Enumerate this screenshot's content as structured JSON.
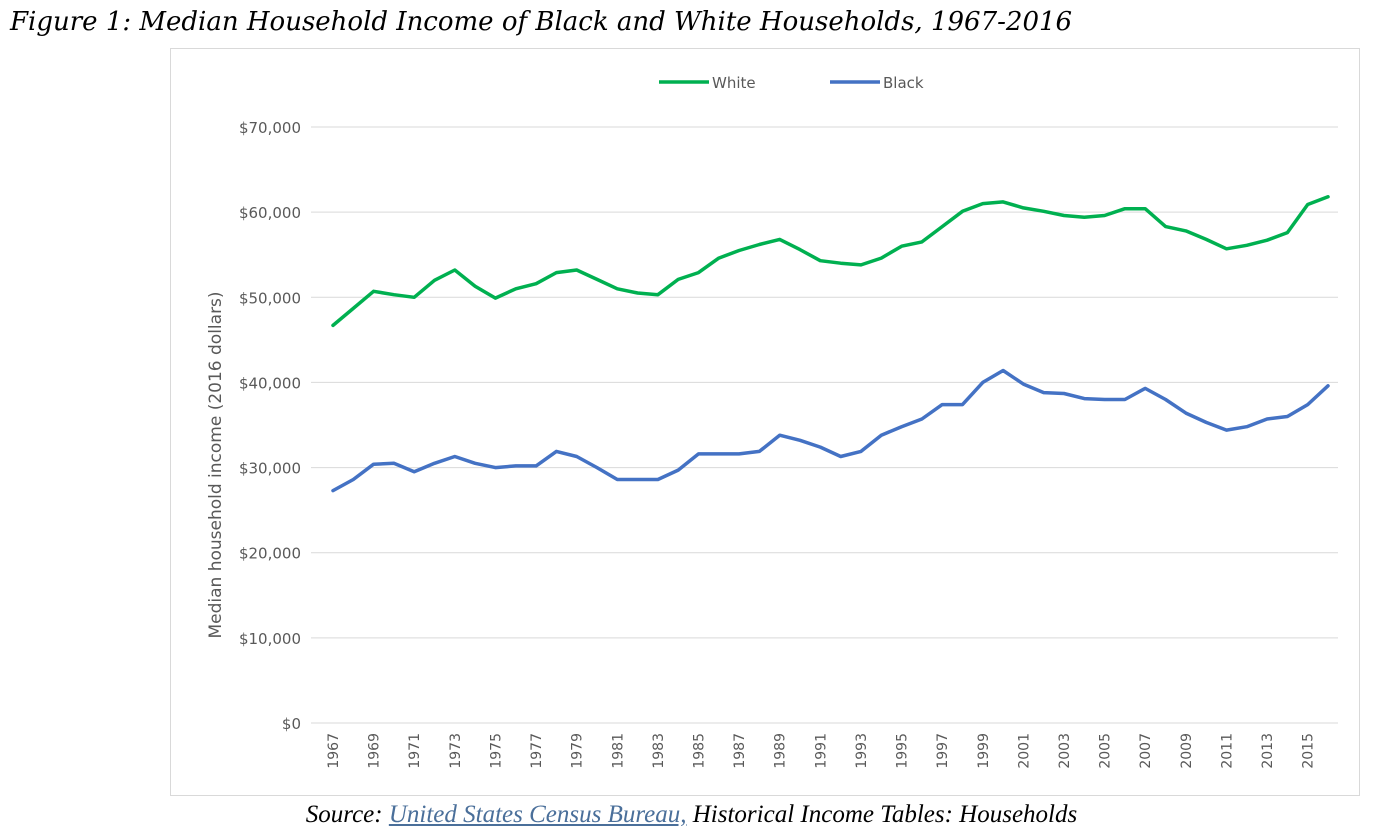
{
  "figure": {
    "title": "Figure 1: Median Household Income of Black and White Households, 1967-2016",
    "source_prefix": "Source: ",
    "source_link": "United States Census Bureau,",
    "source_suffix": " Historical Income Tables: Households"
  },
  "chart_data": {
    "type": "line",
    "title": "",
    "xlabel": "",
    "ylabel": "Median household income (2016 dollars)",
    "ylim": [
      0,
      70000
    ],
    "yticks": [
      0,
      10000,
      20000,
      30000,
      40000,
      50000,
      60000,
      70000
    ],
    "ytick_labels": [
      "$0",
      "$10,000",
      "$20,000",
      "$30,000",
      "$40,000",
      "$50,000",
      "$60,000",
      "$70,000"
    ],
    "x": [
      1967,
      1968,
      1969,
      1970,
      1971,
      1972,
      1973,
      1974,
      1975,
      1976,
      1977,
      1978,
      1979,
      1980,
      1981,
      1982,
      1983,
      1984,
      1985,
      1986,
      1987,
      1988,
      1989,
      1990,
      1991,
      1992,
      1993,
      1994,
      1995,
      1996,
      1997,
      1998,
      1999,
      2000,
      2001,
      2002,
      2003,
      2004,
      2005,
      2006,
      2007,
      2008,
      2009,
      2010,
      2011,
      2012,
      2013,
      2014,
      2015,
      2016
    ],
    "xtick_labels": [
      "1967",
      "1969",
      "1971",
      "1973",
      "1975",
      "1977",
      "1979",
      "1981",
      "1983",
      "1985",
      "1987",
      "1989",
      "1991",
      "1993",
      "1995",
      "1997",
      "1999",
      "2001",
      "2003",
      "2005",
      "2007",
      "2009",
      "2011",
      "2013",
      "2015"
    ],
    "grid": true,
    "legend": "top-center",
    "series": [
      {
        "name": "White",
        "color": "#00b050",
        "values": [
          46700,
          48700,
          50700,
          50300,
          50000,
          52000,
          53200,
          51300,
          49900,
          51000,
          51600,
          52900,
          53200,
          52100,
          51000,
          50500,
          50300,
          52100,
          52900,
          54600,
          55500,
          56200,
          56800,
          55600,
          54300,
          54000,
          53800,
          54600,
          56000,
          56500,
          58300,
          60100,
          61000,
          61200,
          60500,
          60100,
          59600,
          59400,
          59600,
          60400,
          60400,
          58300,
          57800,
          56800,
          55700,
          56100,
          56700,
          57600,
          60900,
          61800
        ]
      },
      {
        "name": "Black",
        "color": "#4472c4",
        "values": [
          27300,
          28600,
          30400,
          30500,
          29500,
          30500,
          31300,
          30500,
          30000,
          30200,
          30200,
          31900,
          31300,
          30000,
          28600,
          28600,
          28600,
          29700,
          31600,
          31600,
          31600,
          31900,
          33800,
          33200,
          32400,
          31300,
          31900,
          33800,
          34800,
          35700,
          37400,
          37400,
          40000,
          41400,
          39800,
          38800,
          38700,
          38100,
          38000,
          38000,
          39300,
          38000,
          36400,
          35300,
          34400,
          34800,
          35700,
          36000,
          37400,
          39600
        ]
      }
    ]
  }
}
